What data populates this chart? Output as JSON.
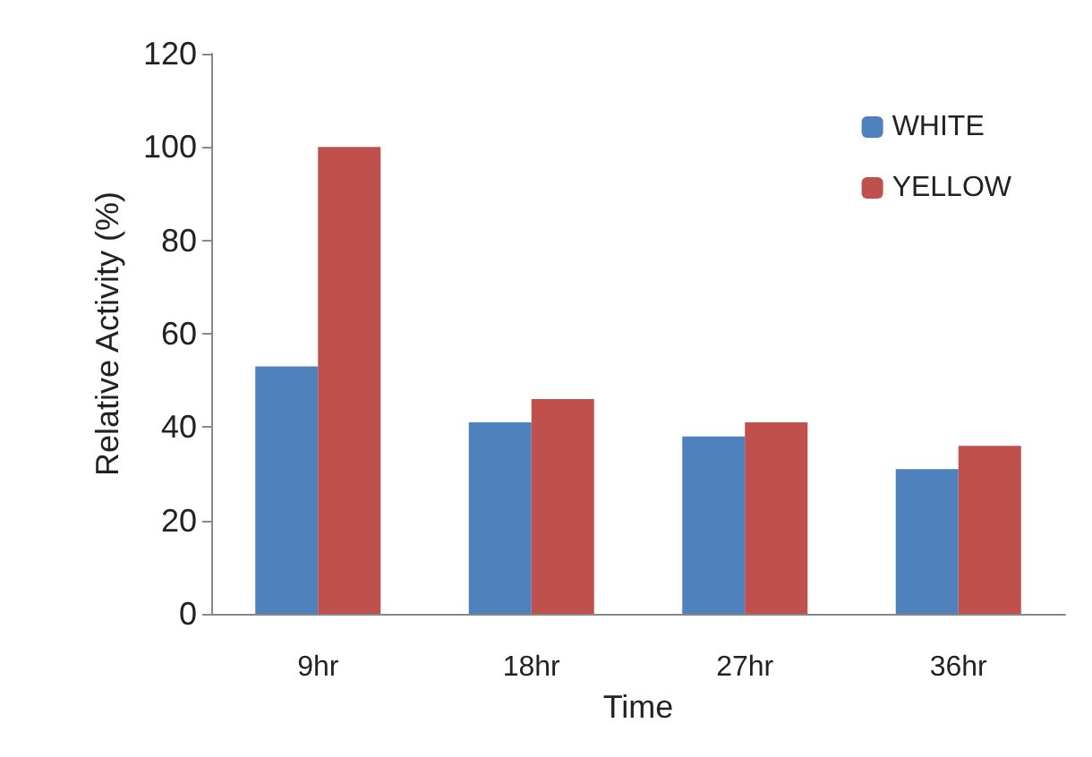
{
  "chart_data": {
    "type": "bar",
    "xlabel": "Time",
    "ylabel": "Relative Activity (%)",
    "categories": [
      "9hr",
      "18hr",
      "27hr",
      "36hr"
    ],
    "series": [
      {
        "name": "WHITE",
        "color": "#4f81bd",
        "values": [
          53,
          41,
          38,
          31
        ]
      },
      {
        "name": "YELLOW",
        "color": "#c0504d",
        "values": [
          100,
          46,
          41,
          36
        ]
      }
    ],
    "ylim": [
      0,
      120
    ],
    "yticks": [
      0,
      20,
      40,
      60,
      80,
      100,
      120
    ],
    "grid": false,
    "legend": "top right"
  }
}
